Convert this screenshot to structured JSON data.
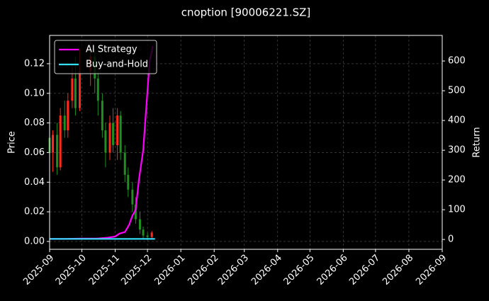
{
  "chart_data": {
    "type": "candlestick",
    "title": "cnoption [90006221.SZ]",
    "ylabel": "Price",
    "y2label": "Return",
    "xlim": [
      "2025-09",
      "2026-09"
    ],
    "xticks": [
      "2025-09",
      "2025-10",
      "2025-11",
      "2025-12",
      "2026-01",
      "2026-02",
      "2026-03",
      "2026-04",
      "2026-05",
      "2026-06",
      "2026-07",
      "2026-08",
      "2026-09"
    ],
    "ylim": [
      -0.0053,
      0.1391
    ],
    "yticks": [
      {
        "value": 0,
        "label": "0.00"
      },
      {
        "value": 0.02,
        "label": "0.02"
      },
      {
        "value": 0.04,
        "label": "0.04"
      },
      {
        "value": 0.06,
        "label": "0.06"
      },
      {
        "value": 0.08,
        "label": "0.08"
      },
      {
        "value": 0.1,
        "label": "0.10"
      },
      {
        "value": 0.12,
        "label": "0.12"
      }
    ],
    "y2lim": [
      -33,
      686
    ],
    "y2ticks": [
      0,
      100,
      200,
      300,
      400,
      500,
      600
    ],
    "grid": true,
    "legend": "upper left",
    "up_color": "#ff2a1a",
    "down_color": "#1f8f1f",
    "x": [
      "2025-09-01",
      "2025-09-04",
      "2025-09-08",
      "2025-09-11",
      "2025-09-15",
      "2025-09-18",
      "2025-09-22",
      "2025-09-25",
      "2025-09-29",
      "2025-10-09",
      "2025-10-13",
      "2025-10-16",
      "2025-10-20",
      "2025-10-23",
      "2025-10-27",
      "2025-10-30",
      "2025-11-03",
      "2025-11-06",
      "2025-11-10",
      "2025-11-13",
      "2025-11-17",
      "2025-11-20",
      "2025-11-24",
      "2025-11-27",
      "2025-12-01",
      "2025-12-05"
    ],
    "open": [
      0.07,
      0.06,
      0.072,
      0.05,
      0.085,
      0.075,
      0.095,
      0.11,
      0.09,
      0.115,
      0.125,
      0.11,
      0.095,
      0.075,
      0.06,
      0.08,
      0.065,
      0.085,
      0.06,
      0.045,
      0.035,
      0.025,
      0.015,
      0.008,
      0.004,
      0.003
    ],
    "close": [
      0.06,
      0.072,
      0.05,
      0.085,
      0.075,
      0.095,
      0.11,
      0.09,
      0.115,
      0.125,
      0.11,
      0.095,
      0.075,
      0.06,
      0.08,
      0.065,
      0.085,
      0.06,
      0.045,
      0.035,
      0.025,
      0.015,
      0.008,
      0.004,
      0.003,
      0.006
    ],
    "high": [
      0.08,
      0.075,
      0.08,
      0.09,
      0.095,
      0.1,
      0.12,
      0.125,
      0.13,
      0.135,
      0.13,
      0.115,
      0.1,
      0.08,
      0.085,
      0.09,
      0.09,
      0.088,
      0.065,
      0.05,
      0.04,
      0.03,
      0.02,
      0.01,
      0.006,
      0.007
    ],
    "low": [
      0.047,
      0.047,
      0.045,
      0.048,
      0.07,
      0.07,
      0.09,
      0.085,
      0.088,
      0.105,
      0.1,
      0.085,
      0.07,
      0.05,
      0.055,
      0.06,
      0.055,
      0.055,
      0.04,
      0.03,
      0.02,
      0.012,
      0.005,
      0.002,
      0.001,
      0.002
    ],
    "series": [
      {
        "name": "AI Strategy",
        "color": "#ff00ff",
        "axis": "y2",
        "x": [
          "2025-09-01",
          "2025-09-15",
          "2025-10-01",
          "2025-10-15",
          "2025-10-25",
          "2025-11-01",
          "2025-11-05",
          "2025-11-10",
          "2025-11-14",
          "2025-11-17",
          "2025-11-20",
          "2025-11-23",
          "2025-11-27",
          "2025-12-01",
          "2025-12-03",
          "2025-12-06"
        ],
        "values": [
          2,
          2,
          3,
          3,
          6,
          10,
          20,
          25,
          50,
          80,
          100,
          200,
          300,
          500,
          600,
          650
        ]
      },
      {
        "name": "Buy-and-Hold",
        "color": "#33e0ff",
        "axis": "y2",
        "x": [
          "2025-09-01",
          "2025-10-01",
          "2025-11-01",
          "2025-12-08"
        ],
        "values": [
          2,
          2,
          2,
          2
        ]
      }
    ]
  }
}
